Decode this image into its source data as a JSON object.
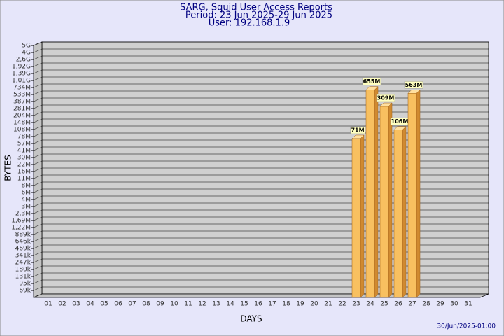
{
  "chart_data": {
    "type": "bar",
    "title": "SARG, Squid User Access Reports",
    "subtitle": "Period: 23 Jun 2025-29 Jun 2025",
    "user": "User: 192.168.1.9",
    "x_label": "DAYS",
    "y_label": "BYTES",
    "footer": "30/Jun/2025-01:00",
    "color": "#f8c060",
    "grid": true,
    "categories": [
      "01",
      "02",
      "03",
      "04",
      "05",
      "06",
      "07",
      "08",
      "09",
      "10",
      "11",
      "12",
      "13",
      "14",
      "15",
      "16",
      "17",
      "18",
      "19",
      "20",
      "21",
      "22",
      "23",
      "24",
      "25",
      "26",
      "27",
      "28",
      "29",
      "30",
      "31"
    ],
    "values": [
      null,
      null,
      null,
      null,
      null,
      null,
      null,
      null,
      null,
      null,
      null,
      null,
      null,
      null,
      null,
      null,
      null,
      null,
      null,
      null,
      null,
      null,
      71000000,
      655000000,
      309000000,
      106000000,
      563000000,
      null,
      null,
      null,
      null
    ],
    "value_labels": [
      null,
      null,
      null,
      null,
      null,
      null,
      null,
      null,
      null,
      null,
      null,
      null,
      null,
      null,
      null,
      null,
      null,
      null,
      null,
      null,
      null,
      null,
      "71M",
      "655M",
      "309M",
      "106M",
      "563M",
      null,
      null,
      null,
      null
    ],
    "ylim": [
      0,
      5000000000
    ],
    "yticks": [
      {
        "value": 69000,
        "label": "69k"
      },
      {
        "value": 95000,
        "label": "95k"
      },
      {
        "value": 131000,
        "label": "131k"
      },
      {
        "value": 180000,
        "label": "180k"
      },
      {
        "value": 247000,
        "label": "247k"
      },
      {
        "value": 341000,
        "label": "341k"
      },
      {
        "value": 469000,
        "label": "469k"
      },
      {
        "value": 646000,
        "label": "646k"
      },
      {
        "value": 889000,
        "label": "889k"
      },
      {
        "value": 1220000,
        "label": "1,22M"
      },
      {
        "value": 1690000,
        "label": "1,69M"
      },
      {
        "value": 2300000,
        "label": "2,3M"
      },
      {
        "value": 3000000,
        "label": "3M"
      },
      {
        "value": 4000000,
        "label": "4M"
      },
      {
        "value": 6000000,
        "label": "6M"
      },
      {
        "value": 8000000,
        "label": "8M"
      },
      {
        "value": 11000000,
        "label": "11M"
      },
      {
        "value": 16000000,
        "label": "16M"
      },
      {
        "value": 22000000,
        "label": "22M"
      },
      {
        "value": 30000000,
        "label": "30M"
      },
      {
        "value": 41000000,
        "label": "41M"
      },
      {
        "value": 57000000,
        "label": "57M"
      },
      {
        "value": 78000000,
        "label": "78M"
      },
      {
        "value": 108000000,
        "label": "108M"
      },
      {
        "value": 148000000,
        "label": "148M"
      },
      {
        "value": 204000000,
        "label": "204M"
      },
      {
        "value": 281000000,
        "label": "281M"
      },
      {
        "value": 387000000,
        "label": "387M"
      },
      {
        "value": 533000000,
        "label": "533M"
      },
      {
        "value": 734000000,
        "label": "734M"
      },
      {
        "value": 1010000000,
        "label": "1,01G"
      },
      {
        "value": 1390000000,
        "label": "1,39G"
      },
      {
        "value": 1920000000,
        "label": "1,92G"
      },
      {
        "value": 2600000000,
        "label": "2,6G"
      },
      {
        "value": 4000000000,
        "label": "4G"
      },
      {
        "value": 5000000000,
        "label": "5G"
      }
    ]
  }
}
